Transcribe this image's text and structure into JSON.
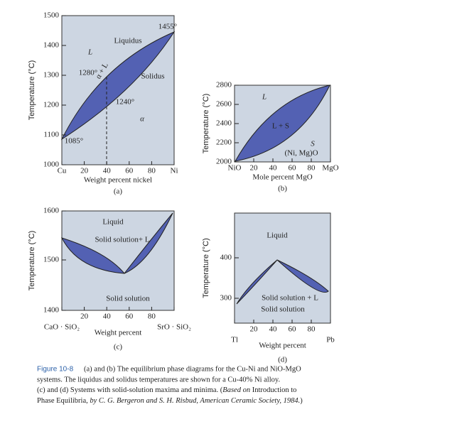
{
  "panels": [
    {
      "letter": "(a)",
      "y_label": "Temperature (°C)",
      "x_label": "Weight percent nickel",
      "y_ticks": [
        "1500",
        "1400",
        "1300",
        "1200",
        "1100",
        "1000"
      ],
      "x_ticks": [
        "Cu",
        "20",
        "40",
        "60",
        "80",
        "Ni"
      ],
      "annotations": [
        "1455°",
        "Liquidus",
        "L",
        "α + L",
        "1280°",
        "Solidus",
        "1240°",
        "α",
        "1085°"
      ]
    },
    {
      "letter": "(b)",
      "y_label": "Temperature (°C)",
      "x_label": "Mole percent MgO",
      "y_ticks": [
        "2800",
        "2600",
        "2400",
        "2200",
        "2000"
      ],
      "x_ticks": [
        "NiO",
        "20",
        "40",
        "60",
        "80",
        "MgO"
      ],
      "annotations": [
        "L",
        "L + S",
        "S",
        "(Ni, Mg)O"
      ]
    },
    {
      "letter": "(c)",
      "y_label": "Temperature (°C)",
      "x_label": "Weight percent",
      "y_ticks": [
        "1600",
        "1500",
        "1400"
      ],
      "x_ticks": [
        "CaO · SiO₂",
        "20",
        "40",
        "60",
        "80",
        "SrO · SiO₂"
      ],
      "annotations": [
        "Liquid",
        "Solid solution+ L",
        "Solid solution"
      ]
    },
    {
      "letter": "(d)",
      "y_label": "Temperature (°C)",
      "x_label": "Weight percent",
      "y_ticks": [
        "400",
        "300"
      ],
      "x_ticks": [
        "Tl",
        "20",
        "40",
        "60",
        "80",
        "Pb"
      ],
      "annotations": [
        "Liquid",
        "Solid solution + L",
        "Solid solution"
      ]
    }
  ],
  "caption": {
    "label": "Figure 10-8",
    "line1": "(a) and (b) The equilibrium phase diagrams for the Cu-Ni and NiO-MgO",
    "line2": "systems. The liquidus and solidus temperatures are shown for a Cu-40% Ni alloy.",
    "line3a": "(c) and (d) Systems with solid-solution maxima and minima. (",
    "line3b": "Based on",
    "line3c": " Introduction to",
    "line4a": "Phase Equilibria, ",
    "line4b": "by C. G. Bergeron and S. H. Risbud, American Ceramic Society, 1984.",
    "line4c": ")"
  }
}
